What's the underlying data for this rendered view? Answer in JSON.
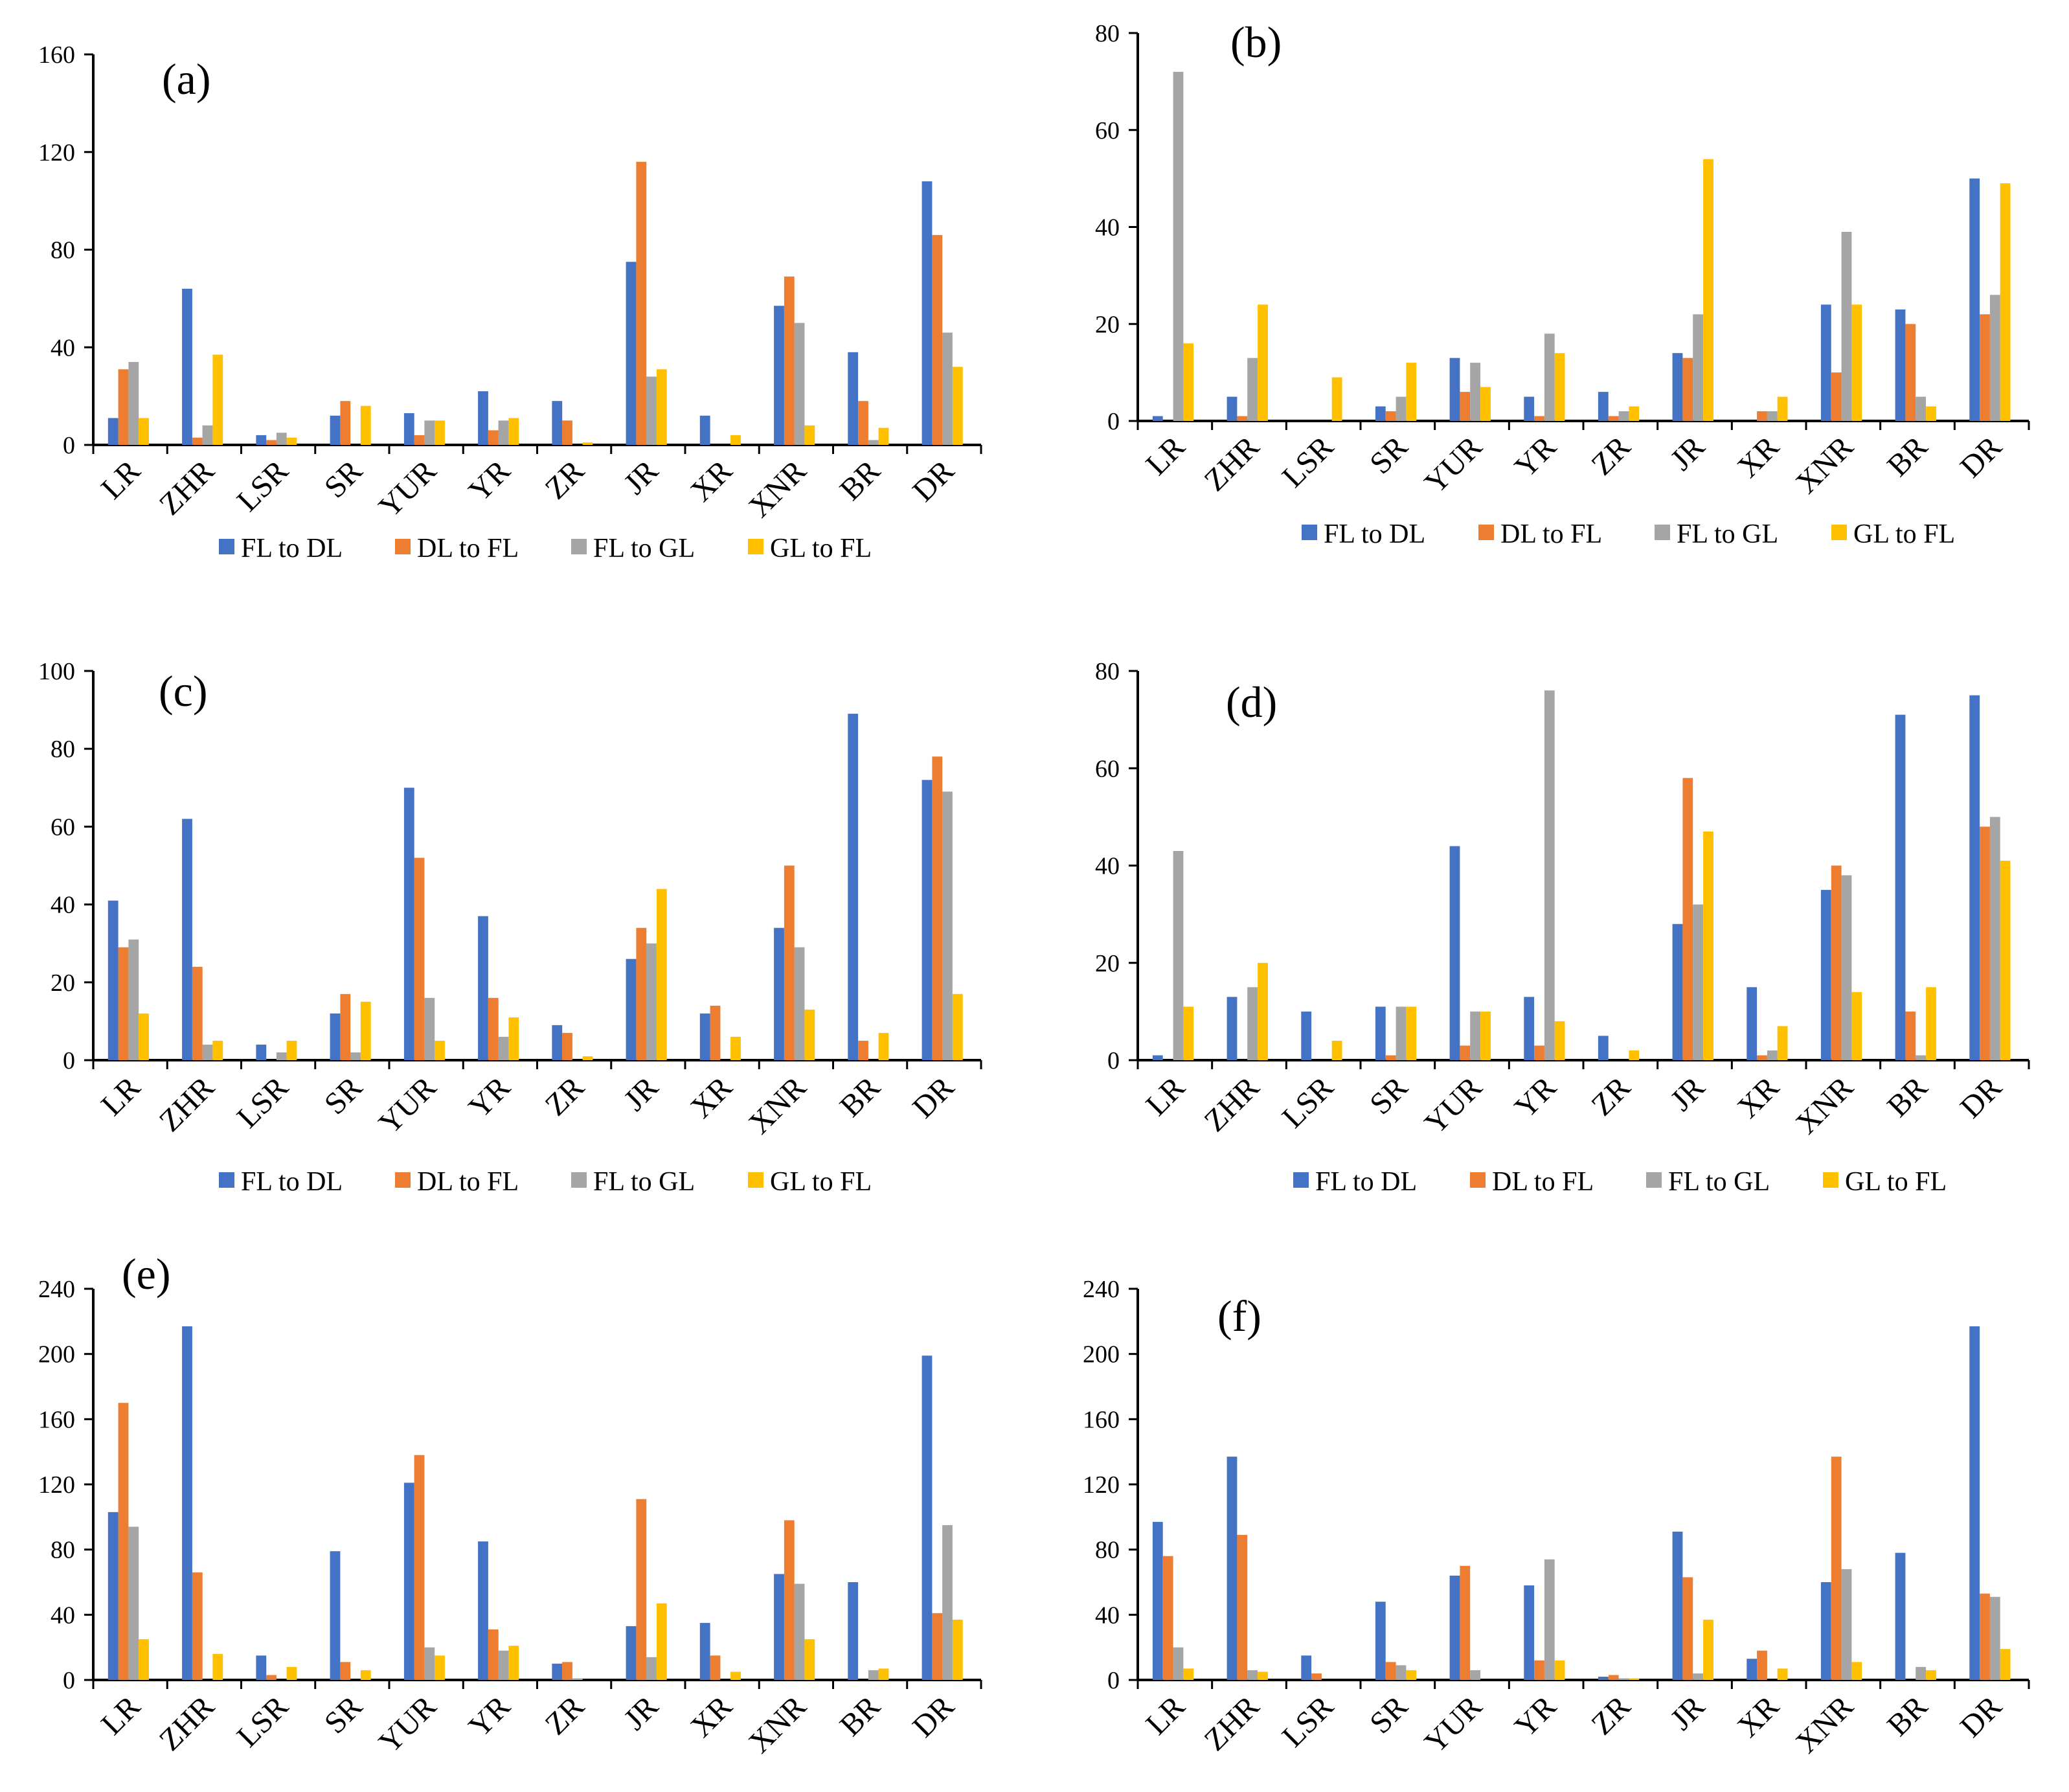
{
  "colors": {
    "FL to DL": "#4472C4",
    "DL to FL": "#ED7D31",
    "FL to GL": "#A5A5A5",
    "GL to FL": "#FFC000"
  },
  "chart_data": [
    {
      "type": "bar",
      "panel": "(a)",
      "categories": [
        "LR",
        "ZHR",
        "LSR",
        "SR",
        "YUR",
        "YR",
        "ZR",
        "JR",
        "XR",
        "XNR",
        "BR",
        "DR"
      ],
      "ylim": [
        0,
        160
      ],
      "yticks": [
        0,
        40,
        80,
        120,
        160
      ],
      "series": [
        {
          "name": "FL to DL",
          "values": [
            11,
            64,
            4,
            12,
            13,
            22,
            18,
            75,
            12,
            57,
            38,
            108
          ]
        },
        {
          "name": "DL to FL",
          "values": [
            31,
            3,
            2,
            18,
            4,
            6,
            10,
            116,
            0,
            69,
            18,
            86
          ]
        },
        {
          "name": "FL to GL",
          "values": [
            34,
            8,
            5,
            0,
            10,
            10,
            0,
            28,
            0,
            50,
            2,
            46
          ]
        },
        {
          "name": "GL to FL",
          "values": [
            11,
            37,
            3,
            16,
            10,
            11,
            1,
            31,
            4,
            8,
            7,
            32
          ]
        }
      ]
    },
    {
      "type": "bar",
      "panel": "(b)",
      "categories": [
        "LR",
        "ZHR",
        "LSR",
        "SR",
        "YUR",
        "YR",
        "ZR",
        "JR",
        "XR",
        "XNR",
        "BR",
        "DR"
      ],
      "ylim": [
        0,
        80
      ],
      "yticks": [
        0,
        20,
        40,
        60,
        80
      ],
      "series": [
        {
          "name": "FL to DL",
          "values": [
            1,
            5,
            0,
            3,
            13,
            5,
            6,
            14,
            0,
            24,
            23,
            50
          ]
        },
        {
          "name": "DL to FL",
          "values": [
            0,
            1,
            0,
            2,
            6,
            1,
            1,
            13,
            2,
            10,
            20,
            22
          ]
        },
        {
          "name": "FL to GL",
          "values": [
            72,
            13,
            0,
            5,
            12,
            18,
            2,
            22,
            2,
            39,
            5,
            26
          ]
        },
        {
          "name": "GL to FL",
          "values": [
            16,
            24,
            9,
            12,
            7,
            14,
            3,
            54,
            5,
            24,
            3,
            49
          ]
        }
      ]
    },
    {
      "type": "bar",
      "panel": "(c)",
      "categories": [
        "LR",
        "ZHR",
        "LSR",
        "SR",
        "YUR",
        "YR",
        "ZR",
        "JR",
        "XR",
        "XNR",
        "BR",
        "DR"
      ],
      "ylim": [
        0,
        100
      ],
      "yticks": [
        0,
        20,
        40,
        60,
        80,
        100
      ],
      "series": [
        {
          "name": "FL to DL",
          "values": [
            41,
            62,
            4,
            12,
            70,
            37,
            9,
            26,
            12,
            34,
            89,
            72
          ]
        },
        {
          "name": "DL to FL",
          "values": [
            29,
            24,
            0,
            17,
            52,
            16,
            7,
            34,
            14,
            50,
            5,
            78
          ]
        },
        {
          "name": "FL to GL",
          "values": [
            31,
            4,
            2,
            2,
            16,
            6,
            0,
            30,
            0,
            29,
            0,
            69
          ]
        },
        {
          "name": "GL to FL",
          "values": [
            12,
            5,
            5,
            15,
            5,
            11,
            1,
            44,
            6,
            13,
            7,
            17
          ]
        }
      ]
    },
    {
      "type": "bar",
      "panel": "(d)",
      "categories": [
        "LR",
        "ZHR",
        "LSR",
        "SR",
        "YUR",
        "YR",
        "ZR",
        "JR",
        "XR",
        "XNR",
        "BR",
        "DR"
      ],
      "ylim": [
        0,
        80
      ],
      "yticks": [
        0,
        20,
        40,
        60,
        80
      ],
      "series": [
        {
          "name": "FL to DL",
          "values": [
            1,
            13,
            10,
            11,
            44,
            13,
            5,
            28,
            15,
            35,
            71,
            75
          ]
        },
        {
          "name": "DL to FL",
          "values": [
            0,
            0,
            0,
            1,
            3,
            3,
            0,
            58,
            1,
            40,
            10,
            48
          ]
        },
        {
          "name": "FL to GL",
          "values": [
            43,
            15,
            0,
            11,
            10,
            76,
            0,
            32,
            2,
            38,
            1,
            50
          ]
        },
        {
          "name": "GL to FL",
          "values": [
            11,
            20,
            4,
            11,
            10,
            8,
            2,
            47,
            7,
            14,
            15,
            41
          ]
        }
      ]
    },
    {
      "type": "bar",
      "panel": "(e)",
      "categories": [
        "LR",
        "ZHR",
        "LSR",
        "SR",
        "YUR",
        "YR",
        "ZR",
        "JR",
        "XR",
        "XNR",
        "BR",
        "DR"
      ],
      "ylim": [
        0,
        240
      ],
      "yticks": [
        0,
        40,
        80,
        120,
        160,
        200,
        240
      ],
      "series": [
        {
          "name": "FL to DL",
          "values": [
            103,
            217,
            15,
            79,
            121,
            85,
            10,
            33,
            35,
            65,
            60,
            199
          ]
        },
        {
          "name": "DL to FL",
          "values": [
            170,
            66,
            3,
            11,
            138,
            31,
            11,
            111,
            15,
            98,
            0,
            41
          ]
        },
        {
          "name": "FL to GL",
          "values": [
            94,
            0,
            0,
            0,
            20,
            18,
            1,
            14,
            0,
            59,
            6,
            95
          ]
        },
        {
          "name": "GL to FL",
          "values": [
            25,
            16,
            8,
            6,
            15,
            21,
            0,
            47,
            5,
            25,
            7,
            37
          ]
        }
      ]
    },
    {
      "type": "bar",
      "panel": "(f)",
      "categories": [
        "LR",
        "ZHR",
        "LSR",
        "SR",
        "YUR",
        "YR",
        "ZR",
        "JR",
        "XR",
        "XNR",
        "BR",
        "DR"
      ],
      "ylim": [
        0,
        240
      ],
      "yticks": [
        0,
        40,
        80,
        120,
        160,
        200,
        240
      ],
      "series": [
        {
          "name": "FL to DL",
          "values": [
            97,
            137,
            15,
            48,
            64,
            58,
            2,
            91,
            13,
            60,
            78,
            217
          ]
        },
        {
          "name": "DL to FL",
          "values": [
            76,
            89,
            4,
            11,
            70,
            12,
            3,
            63,
            18,
            137,
            0,
            53
          ]
        },
        {
          "name": "FL to GL",
          "values": [
            20,
            6,
            0,
            9,
            6,
            74,
            1,
            4,
            0,
            68,
            8,
            51
          ]
        },
        {
          "name": "GL to FL",
          "values": [
            7,
            5,
            0,
            6,
            0,
            12,
            1,
            37,
            7,
            11,
            6,
            19
          ]
        }
      ]
    }
  ]
}
